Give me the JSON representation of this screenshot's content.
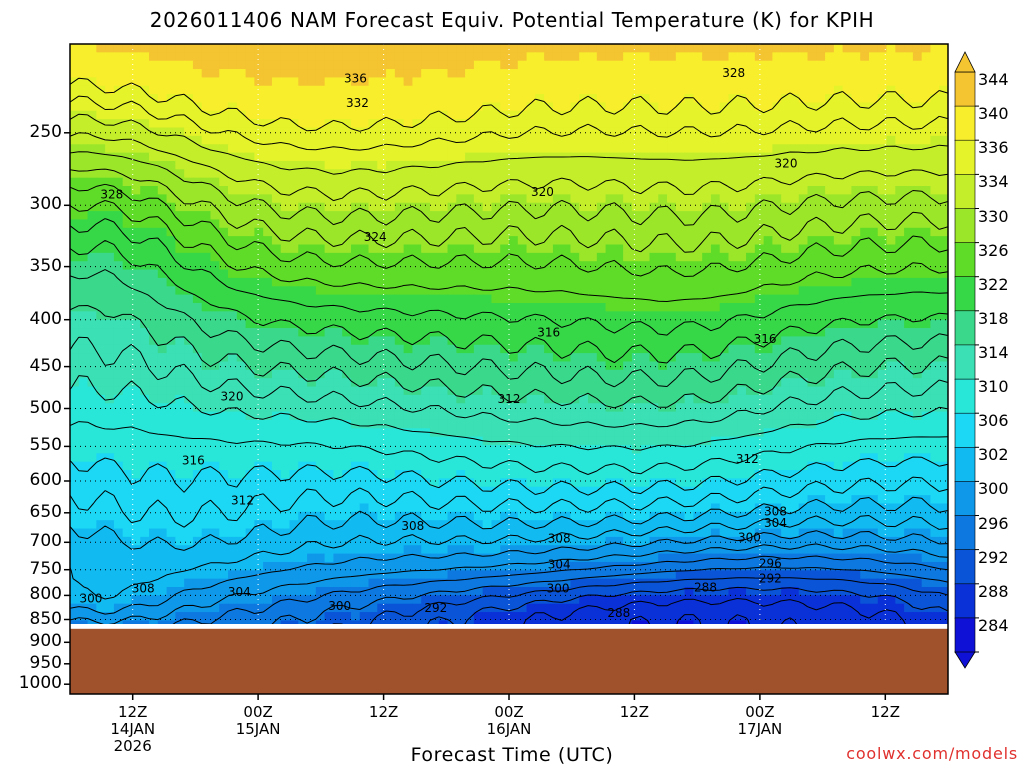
{
  "chart_data": {
    "type": "heatmap",
    "title": "2026011406 NAM Forecast Equiv. Potential Temperature (K) for KPIH",
    "xlabel": "Forecast Time (UTC)",
    "ylabel": "",
    "y_axis": {
      "ticks": [
        "250",
        "300",
        "350",
        "400",
        "450",
        "500",
        "550",
        "600",
        "650",
        "700",
        "750",
        "800",
        "850",
        "900",
        "950",
        "1000"
      ],
      "scale": "log-pressure",
      "ylim": [
        1025,
        200
      ]
    },
    "x_axis": {
      "range_hours": [
        0,
        84
      ],
      "ticks": [
        {
          "hour": 6,
          "lines": [
            "12Z",
            "14JAN",
            "2026"
          ]
        },
        {
          "hour": 18,
          "lines": [
            "00Z",
            "15JAN"
          ]
        },
        {
          "hour": 30,
          "lines": [
            "12Z"
          ]
        },
        {
          "hour": 42,
          "lines": [
            "00Z",
            "16JAN"
          ]
        },
        {
          "hour": 54,
          "lines": [
            "12Z"
          ]
        },
        {
          "hour": 66,
          "lines": [
            "00Z",
            "17JAN"
          ]
        },
        {
          "hour": 78,
          "lines": [
            "12Z"
          ]
        }
      ]
    },
    "colorbar": {
      "labels": [
        "344",
        "340",
        "336",
        "334",
        "330",
        "326",
        "322",
        "318",
        "314",
        "310",
        "306",
        "302",
        "300",
        "296",
        "292",
        "288",
        "284"
      ],
      "colors": [
        "#f4c431",
        "#f8ee2c",
        "#e4f32a",
        "#c4ee2a",
        "#9ce62a",
        "#5fdc28",
        "#36d848",
        "#3ad88a",
        "#3be0b4",
        "#28e6d8",
        "#1cd8f4",
        "#12baf2",
        "#0f98ea",
        "#0c78e0",
        "#0a54d8",
        "#0a30d8",
        "#0f12d6"
      ]
    },
    "ground_surface": {
      "pressure_hpa": 870,
      "color": "#a0522d"
    },
    "contour_interval_k": 2,
    "contour_labels": [
      {
        "value": "336",
        "hour": 27.3,
        "pressure_hpa": 218
      },
      {
        "value": "332",
        "hour": 27.5,
        "pressure_hpa": 232
      },
      {
        "value": "328",
        "hour": 63.5,
        "pressure_hpa": 215
      },
      {
        "value": "328",
        "hour": 4.0,
        "pressure_hpa": 292
      },
      {
        "value": "324",
        "hour": 29.2,
        "pressure_hpa": 325
      },
      {
        "value": "320",
        "hour": 45.2,
        "pressure_hpa": 290
      },
      {
        "value": "320",
        "hour": 68.5,
        "pressure_hpa": 270
      },
      {
        "value": "320",
        "hour": 15.5,
        "pressure_hpa": 485
      },
      {
        "value": "316",
        "hour": 45.8,
        "pressure_hpa": 413
      },
      {
        "value": "316",
        "hour": 66.5,
        "pressure_hpa": 420
      },
      {
        "value": "316",
        "hour": 11.8,
        "pressure_hpa": 570
      },
      {
        "value": "312",
        "hour": 42.0,
        "pressure_hpa": 488
      },
      {
        "value": "312",
        "hour": 64.8,
        "pressure_hpa": 568
      },
      {
        "value": "312",
        "hour": 16.5,
        "pressure_hpa": 630
      },
      {
        "value": "308",
        "hour": 32.8,
        "pressure_hpa": 672
      },
      {
        "value": "308",
        "hour": 67.5,
        "pressure_hpa": 648
      },
      {
        "value": "308",
        "hour": 46.8,
        "pressure_hpa": 693
      },
      {
        "value": "308",
        "hour": 7.0,
        "pressure_hpa": 786
      },
      {
        "value": "304",
        "hour": 67.5,
        "pressure_hpa": 667
      },
      {
        "value": "304",
        "hour": 46.8,
        "pressure_hpa": 740
      },
      {
        "value": "304",
        "hour": 16.2,
        "pressure_hpa": 793
      },
      {
        "value": "300",
        "hour": 65.0,
        "pressure_hpa": 692
      },
      {
        "value": "300",
        "hour": 46.7,
        "pressure_hpa": 786
      },
      {
        "value": "300",
        "hour": 2.0,
        "pressure_hpa": 806
      },
      {
        "value": "300",
        "hour": 25.8,
        "pressure_hpa": 822
      },
      {
        "value": "296",
        "hour": 67.0,
        "pressure_hpa": 738
      },
      {
        "value": "292",
        "hour": 67.0,
        "pressure_hpa": 767
      },
      {
        "value": "292",
        "hour": 35.0,
        "pressure_hpa": 826
      },
      {
        "value": "288",
        "hour": 60.8,
        "pressure_hpa": 784
      },
      {
        "value": "288",
        "hour": 52.5,
        "pressure_hpa": 836
      }
    ]
  },
  "credit": "coolwx.com/models"
}
